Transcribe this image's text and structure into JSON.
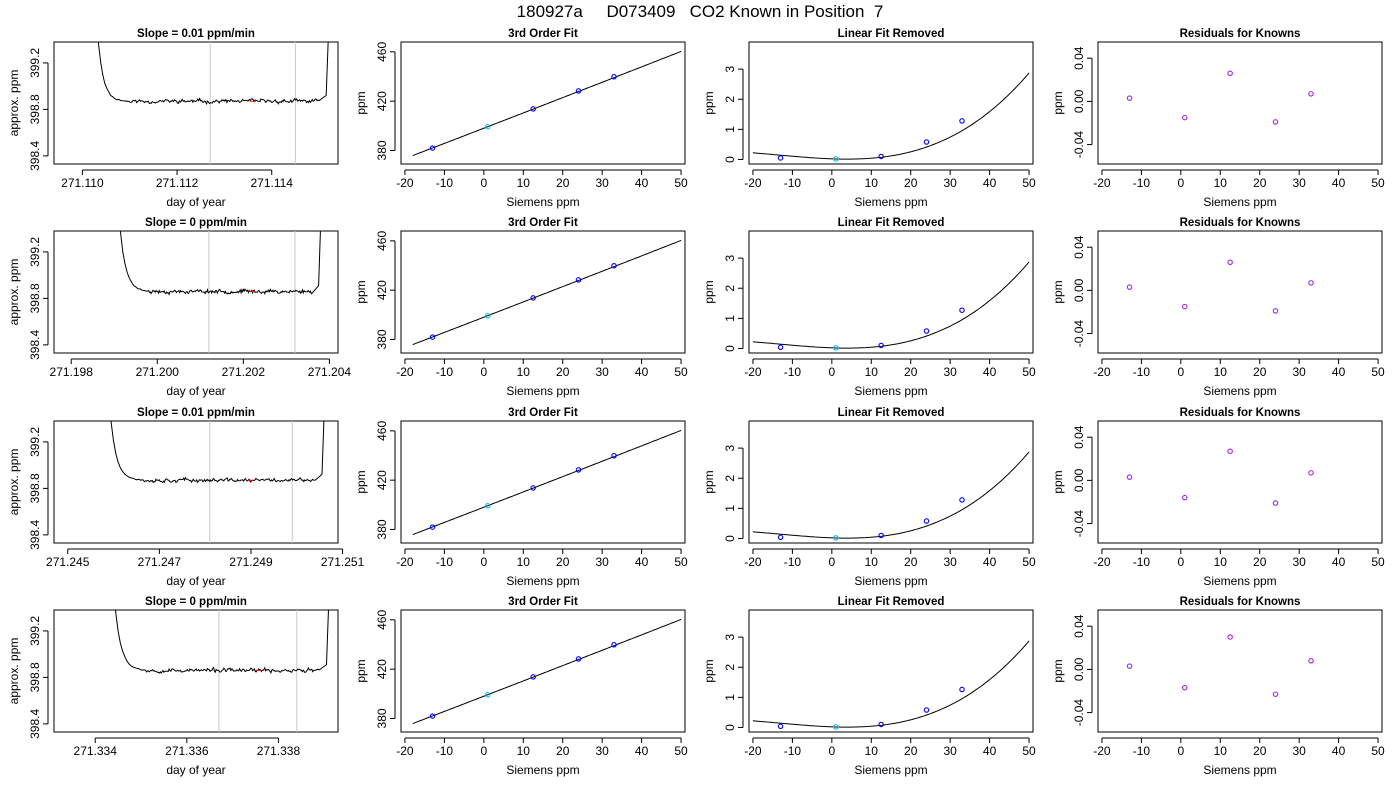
{
  "page": {
    "title": "180927a     D073409   CO2 Known in Position  7"
  },
  "colors": {
    "axis": "#000000",
    "trace": "#000000",
    "fit_line": "#000000",
    "marker_points": "#0000ff",
    "marker_std": "#00bfff",
    "residual_points": "#a020f0",
    "window_lines": "#c8c8c8",
    "mean_mark": "#ff0000"
  },
  "chart_data": [
    {
      "type": "line",
      "row": 1,
      "col": 1,
      "title": "Slope =  0.01  ppm/min",
      "xlabel": "day of year",
      "ylabel": "approx. ppm",
      "xlim": [
        271.1094,
        271.1154
      ],
      "ylim": [
        398.33,
        399.38
      ],
      "xticks": [
        271.11,
        271.112,
        271.114
      ],
      "xtick_labels": [
        "271.110",
        "271.112",
        "271.114"
      ],
      "yticks": [
        398.4,
        398.8,
        399.2
      ],
      "ytick_labels": [
        "398.4",
        "398.8",
        "399.2"
      ],
      "window": [
        271.1127,
        271.1145
      ],
      "trace": {
        "start": 271.1103,
        "drop_end": 271.1109,
        "flat_end": 271.115,
        "end": 271.11515,
        "level": 398.87,
        "seed": 11
      }
    },
    {
      "type": "line",
      "row": 1,
      "col": 2,
      "title": "3rd Order Fit",
      "xlabel": "Siemens ppm",
      "ylabel": "ppm",
      "xlim": [
        -21,
        51
      ],
      "ylim": [
        369,
        468
      ],
      "xticks": [
        -20,
        -10,
        0,
        10,
        20,
        30,
        40,
        50
      ],
      "xtick_labels": [
        "-20",
        "-10",
        "0",
        "10",
        "20",
        "30",
        "40",
        "50"
      ],
      "yticks": [
        380,
        420,
        460
      ],
      "ytick_labels": [
        "380",
        "420",
        "460"
      ],
      "curve": {
        "x_range": [
          -18,
          50
        ],
        "coef": [
          398.05,
          1.237,
          0.00018,
          0
        ]
      },
      "points": [
        {
          "x": -13,
          "y": 381.9,
          "role": "known"
        },
        {
          "x": 1,
          "y": 399.2,
          "role": "std"
        },
        {
          "x": 12.5,
          "y": 413.7,
          "role": "known"
        },
        {
          "x": 24,
          "y": 428.3,
          "role": "known"
        },
        {
          "x": 33,
          "y": 439.8,
          "role": "known"
        }
      ]
    },
    {
      "type": "line",
      "row": 1,
      "col": 3,
      "title": "Linear Fit Removed",
      "xlabel": "Siemens ppm",
      "ylabel": "ppm",
      "xlim": [
        -21,
        51
      ],
      "ylim": [
        -0.15,
        3.9
      ],
      "xticks": [
        -20,
        -10,
        0,
        10,
        20,
        30,
        40,
        50
      ],
      "xtick_labels": [
        "-20",
        "-10",
        "0",
        "10",
        "20",
        "30",
        "40",
        "50"
      ],
      "yticks": [
        0,
        1,
        2,
        3
      ],
      "ytick_labels": [
        "0",
        "1",
        "2",
        "3"
      ],
      "curve": {
        "x_range": [
          -20,
          50
        ],
        "coef": [
          0.0215,
          -0.0047,
          0.00054,
          1.39e-05
        ]
      },
      "points": [
        {
          "x": -13,
          "y": 0.05,
          "role": "known"
        },
        {
          "x": 1,
          "y": 0.02,
          "role": "std"
        },
        {
          "x": 12.5,
          "y": 0.1,
          "role": "known"
        },
        {
          "x": 24,
          "y": 0.58,
          "role": "known"
        },
        {
          "x": 33,
          "y": 1.28,
          "role": "known"
        }
      ]
    },
    {
      "type": "scatter",
      "row": 1,
      "col": 4,
      "title": "Residuals for Knowns",
      "xlabel": "Siemens ppm",
      "ylabel": "ppm",
      "xlim": [
        -21,
        51
      ],
      "ylim": [
        -0.058,
        0.055
      ],
      "xticks": [
        -20,
        -10,
        0,
        10,
        20,
        30,
        40,
        50
      ],
      "xtick_labels": [
        "-20",
        "-10",
        "0",
        "10",
        "20",
        "30",
        "40",
        "50"
      ],
      "yticks": [
        -0.04,
        0,
        0.04
      ],
      "ytick_labels": [
        "-0.04",
        "0.00",
        "0.04"
      ],
      "points": [
        {
          "x": -13,
          "y": 0.003
        },
        {
          "x": 1,
          "y": -0.015
        },
        {
          "x": 12.5,
          "y": 0.026
        },
        {
          "x": 24,
          "y": -0.019
        },
        {
          "x": 33,
          "y": 0.007
        }
      ]
    },
    {
      "type": "line",
      "row": 2,
      "col": 1,
      "title": "Slope =  0  ppm/min",
      "xlabel": "day of year",
      "ylabel": "approx. ppm",
      "xlim": [
        271.1976,
        271.2042
      ],
      "ylim": [
        398.33,
        399.38
      ],
      "xticks": [
        271.198,
        271.2,
        271.202,
        271.204
      ],
      "xtick_labels": [
        "271.198",
        "271.200",
        "271.202",
        "271.204"
      ],
      "yticks": [
        398.4,
        398.8,
        399.2
      ],
      "ytick_labels": [
        "398.4",
        "398.8",
        "399.2"
      ],
      "window": [
        271.2012,
        271.2032
      ],
      "trace": {
        "start": 271.1991,
        "drop_end": 271.1998,
        "flat_end": 271.2036,
        "end": 271.20375,
        "level": 398.86,
        "seed": 23
      }
    },
    {
      "type": "line",
      "row": 2,
      "col": 2,
      "title": "3rd Order Fit",
      "xlabel": "Siemens ppm",
      "ylabel": "ppm",
      "xlim": [
        -21,
        51
      ],
      "ylim": [
        369,
        468
      ],
      "xticks": [
        -20,
        -10,
        0,
        10,
        20,
        30,
        40,
        50
      ],
      "xtick_labels": [
        "-20",
        "-10",
        "0",
        "10",
        "20",
        "30",
        "40",
        "50"
      ],
      "yticks": [
        380,
        420,
        460
      ],
      "ytick_labels": [
        "380",
        "420",
        "460"
      ],
      "curve": {
        "x_range": [
          -18,
          50
        ],
        "coef": [
          398.05,
          1.237,
          0.00018,
          0
        ]
      },
      "points": [
        {
          "x": -13,
          "y": 381.9,
          "role": "known"
        },
        {
          "x": 1,
          "y": 399.2,
          "role": "std"
        },
        {
          "x": 12.5,
          "y": 413.7,
          "role": "known"
        },
        {
          "x": 24,
          "y": 428.3,
          "role": "known"
        },
        {
          "x": 33,
          "y": 439.8,
          "role": "known"
        }
      ]
    },
    {
      "type": "line",
      "row": 2,
      "col": 3,
      "title": "Linear Fit Removed",
      "xlabel": "Siemens ppm",
      "ylabel": "ppm",
      "xlim": [
        -21,
        51
      ],
      "ylim": [
        -0.15,
        3.9
      ],
      "xticks": [
        -20,
        -10,
        0,
        10,
        20,
        30,
        40,
        50
      ],
      "xtick_labels": [
        "-20",
        "-10",
        "0",
        "10",
        "20",
        "30",
        "40",
        "50"
      ],
      "yticks": [
        0,
        1,
        2,
        3
      ],
      "ytick_labels": [
        "0",
        "1",
        "2",
        "3"
      ],
      "curve": {
        "x_range": [
          -20,
          50
        ],
        "coef": [
          0.0215,
          -0.0047,
          0.00054,
          1.39e-05
        ]
      },
      "points": [
        {
          "x": -13,
          "y": 0.04,
          "role": "known"
        },
        {
          "x": 1,
          "y": 0.02,
          "role": "std"
        },
        {
          "x": 12.5,
          "y": 0.1,
          "role": "known"
        },
        {
          "x": 24,
          "y": 0.58,
          "role": "known"
        },
        {
          "x": 33,
          "y": 1.27,
          "role": "known"
        }
      ]
    },
    {
      "type": "scatter",
      "row": 2,
      "col": 4,
      "title": "Residuals for Knowns",
      "xlabel": "Siemens ppm",
      "ylabel": "ppm",
      "xlim": [
        -21,
        51
      ],
      "ylim": [
        -0.058,
        0.055
      ],
      "xticks": [
        -20,
        -10,
        0,
        10,
        20,
        30,
        40,
        50
      ],
      "xtick_labels": [
        "-20",
        "-10",
        "0",
        "10",
        "20",
        "30",
        "40",
        "50"
      ],
      "yticks": [
        -0.04,
        0,
        0.04
      ],
      "ytick_labels": [
        "-0.04",
        "0.00",
        "0.04"
      ],
      "points": [
        {
          "x": -13,
          "y": 0.003
        },
        {
          "x": 1,
          "y": -0.015
        },
        {
          "x": 12.5,
          "y": 0.026
        },
        {
          "x": 24,
          "y": -0.019
        },
        {
          "x": 33,
          "y": 0.007
        }
      ]
    },
    {
      "type": "line",
      "row": 3,
      "col": 1,
      "title": "Slope =  0.01  ppm/min",
      "xlabel": "day of year",
      "ylabel": "approx. ppm",
      "xlim": [
        271.2447,
        271.2509
      ],
      "ylim": [
        398.33,
        399.38
      ],
      "xticks": [
        271.245,
        271.247,
        271.249,
        271.251
      ],
      "xtick_labels": [
        "271.245",
        "271.247",
        "271.249",
        "271.251"
      ],
      "yticks": [
        398.4,
        398.8,
        399.2
      ],
      "ytick_labels": [
        "398.4",
        "398.8",
        "399.2"
      ],
      "window": [
        271.2481,
        271.2499
      ],
      "trace": {
        "start": 271.2459,
        "drop_end": 271.2466,
        "flat_end": 271.2504,
        "end": 271.25055,
        "level": 398.87,
        "seed": 37
      }
    },
    {
      "type": "line",
      "row": 3,
      "col": 2,
      "title": "3rd Order Fit",
      "xlabel": "Siemens ppm",
      "ylabel": "ppm",
      "xlim": [
        -21,
        51
      ],
      "ylim": [
        369,
        468
      ],
      "xticks": [
        -20,
        -10,
        0,
        10,
        20,
        30,
        40,
        50
      ],
      "xtick_labels": [
        "-20",
        "-10",
        "0",
        "10",
        "20",
        "30",
        "40",
        "50"
      ],
      "yticks": [
        380,
        420,
        460
      ],
      "ytick_labels": [
        "380",
        "420",
        "460"
      ],
      "curve": {
        "x_range": [
          -18,
          50
        ],
        "coef": [
          398.05,
          1.237,
          0.00018,
          0
        ]
      },
      "points": [
        {
          "x": -13,
          "y": 381.9,
          "role": "known"
        },
        {
          "x": 1,
          "y": 399.2,
          "role": "std"
        },
        {
          "x": 12.5,
          "y": 413.7,
          "role": "known"
        },
        {
          "x": 24,
          "y": 428.3,
          "role": "known"
        },
        {
          "x": 33,
          "y": 439.8,
          "role": "known"
        }
      ]
    },
    {
      "type": "line",
      "row": 3,
      "col": 3,
      "title": "Linear Fit Removed",
      "xlabel": "Siemens ppm",
      "ylabel": "ppm",
      "xlim": [
        -21,
        51
      ],
      "ylim": [
        -0.15,
        3.9
      ],
      "xticks": [
        -20,
        -10,
        0,
        10,
        20,
        30,
        40,
        50
      ],
      "xtick_labels": [
        "-20",
        "-10",
        "0",
        "10",
        "20",
        "30",
        "40",
        "50"
      ],
      "yticks": [
        0,
        1,
        2,
        3
      ],
      "ytick_labels": [
        "0",
        "1",
        "2",
        "3"
      ],
      "curve": {
        "x_range": [
          -20,
          50
        ],
        "coef": [
          0.0215,
          -0.0047,
          0.00054,
          1.39e-05
        ]
      },
      "points": [
        {
          "x": -13,
          "y": 0.04,
          "role": "known"
        },
        {
          "x": 1,
          "y": 0.02,
          "role": "std"
        },
        {
          "x": 12.5,
          "y": 0.1,
          "role": "known"
        },
        {
          "x": 24,
          "y": 0.58,
          "role": "known"
        },
        {
          "x": 33,
          "y": 1.28,
          "role": "known"
        }
      ]
    },
    {
      "type": "scatter",
      "row": 3,
      "col": 4,
      "title": "Residuals for Knowns",
      "xlabel": "Siemens ppm",
      "ylabel": "ppm",
      "xlim": [
        -21,
        51
      ],
      "ylim": [
        -0.058,
        0.055
      ],
      "xticks": [
        -20,
        -10,
        0,
        10,
        20,
        30,
        40,
        50
      ],
      "xtick_labels": [
        "-20",
        "-10",
        "0",
        "10",
        "20",
        "30",
        "40",
        "50"
      ],
      "yticks": [
        -0.04,
        0,
        0.04
      ],
      "ytick_labels": [
        "-0.04",
        "0.00",
        "0.04"
      ],
      "points": [
        {
          "x": -13,
          "y": 0.003
        },
        {
          "x": 1,
          "y": -0.016
        },
        {
          "x": 12.5,
          "y": 0.027
        },
        {
          "x": 24,
          "y": -0.021
        },
        {
          "x": 33,
          "y": 0.007
        }
      ]
    },
    {
      "type": "line",
      "row": 4,
      "col": 1,
      "title": "Slope =  0  ppm/min",
      "xlabel": "day of year",
      "ylabel": "approx. ppm",
      "xlim": [
        271.3331,
        271.3393
      ],
      "ylim": [
        398.33,
        399.38
      ],
      "xticks": [
        271.334,
        271.336,
        271.338
      ],
      "xtick_labels": [
        "271.334",
        "271.336",
        "271.338"
      ],
      "yticks": [
        398.4,
        398.8,
        399.2
      ],
      "ytick_labels": [
        "398.4",
        "398.8",
        "399.2"
      ],
      "window": [
        271.3367,
        271.3384
      ],
      "trace": {
        "start": 271.3344,
        "drop_end": 271.3351,
        "flat_end": 271.3389,
        "end": 271.33905,
        "level": 398.86,
        "seed": 53
      }
    },
    {
      "type": "line",
      "row": 4,
      "col": 2,
      "title": "3rd Order Fit",
      "xlabel": "Siemens ppm",
      "ylabel": "ppm",
      "xlim": [
        -21,
        51
      ],
      "ylim": [
        369,
        468
      ],
      "xticks": [
        -20,
        -10,
        0,
        10,
        20,
        30,
        40,
        50
      ],
      "xtick_labels": [
        "-20",
        "-10",
        "0",
        "10",
        "20",
        "30",
        "40",
        "50"
      ],
      "yticks": [
        380,
        420,
        460
      ],
      "ytick_labels": [
        "380",
        "420",
        "460"
      ],
      "curve": {
        "x_range": [
          -18,
          50
        ],
        "coef": [
          398.05,
          1.237,
          0.00018,
          0
        ]
      },
      "points": [
        {
          "x": -13,
          "y": 381.9,
          "role": "known"
        },
        {
          "x": 1,
          "y": 399.2,
          "role": "std"
        },
        {
          "x": 12.5,
          "y": 413.7,
          "role": "known"
        },
        {
          "x": 24,
          "y": 428.3,
          "role": "known"
        },
        {
          "x": 33,
          "y": 439.8,
          "role": "known"
        }
      ]
    },
    {
      "type": "line",
      "row": 4,
      "col": 3,
      "title": "Linear Fit Removed",
      "xlabel": "Siemens ppm",
      "ylabel": "ppm",
      "xlim": [
        -21,
        51
      ],
      "ylim": [
        -0.15,
        3.9
      ],
      "xticks": [
        -20,
        -10,
        0,
        10,
        20,
        30,
        40,
        50
      ],
      "xtick_labels": [
        "-20",
        "-10",
        "0",
        "10",
        "20",
        "30",
        "40",
        "50"
      ],
      "yticks": [
        0,
        1,
        2,
        3
      ],
      "ytick_labels": [
        "0",
        "1",
        "2",
        "3"
      ],
      "curve": {
        "x_range": [
          -20,
          50
        ],
        "coef": [
          0.0215,
          -0.0047,
          0.00054,
          1.39e-05
        ]
      },
      "points": [
        {
          "x": -13,
          "y": 0.04,
          "role": "known"
        },
        {
          "x": 1,
          "y": 0.02,
          "role": "std"
        },
        {
          "x": 12.5,
          "y": 0.1,
          "role": "known"
        },
        {
          "x": 24,
          "y": 0.58,
          "role": "known"
        },
        {
          "x": 33,
          "y": 1.26,
          "role": "known"
        }
      ]
    },
    {
      "type": "scatter",
      "row": 4,
      "col": 4,
      "title": "Residuals for Knowns",
      "xlabel": "Siemens ppm",
      "ylabel": "ppm",
      "xlim": [
        -21,
        51
      ],
      "ylim": [
        -0.058,
        0.055
      ],
      "xticks": [
        -20,
        -10,
        0,
        10,
        20,
        30,
        40,
        50
      ],
      "xtick_labels": [
        "-20",
        "-10",
        "0",
        "10",
        "20",
        "30",
        "40",
        "50"
      ],
      "yticks": [
        -0.04,
        0,
        0.04
      ],
      "ytick_labels": [
        "-0.04",
        "0.00",
        "0.04"
      ],
      "points": [
        {
          "x": -13,
          "y": 0.003
        },
        {
          "x": 1,
          "y": -0.017
        },
        {
          "x": 12.5,
          "y": 0.03
        },
        {
          "x": 24,
          "y": -0.023
        },
        {
          "x": 33,
          "y": 0.008
        }
      ]
    }
  ]
}
